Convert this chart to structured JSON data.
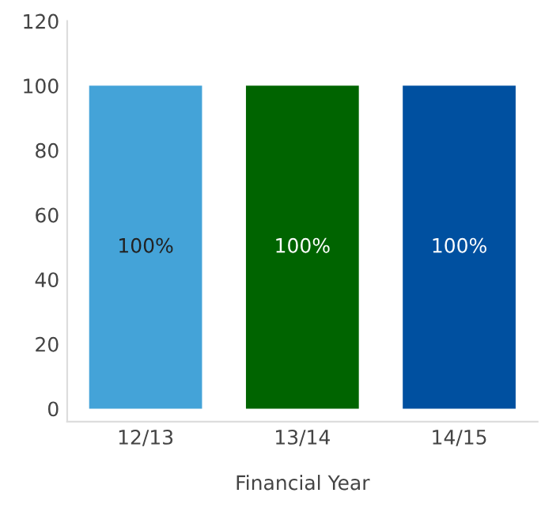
{
  "chart_data": {
    "type": "bar",
    "xlabel": "Financial Year",
    "categories": [
      "12/13",
      "13/14",
      "14/15"
    ],
    "values": [
      100,
      100,
      100
    ],
    "colors": [
      "#44a3d8",
      "#006400",
      "#0050a0"
    ],
    "value_labels": [
      "100%",
      "100%",
      "100%"
    ],
    "ylim": [
      -4,
      120
    ],
    "yticks": [
      0,
      20,
      40,
      60,
      80,
      100,
      120
    ],
    "grid": false,
    "legend": false
  }
}
